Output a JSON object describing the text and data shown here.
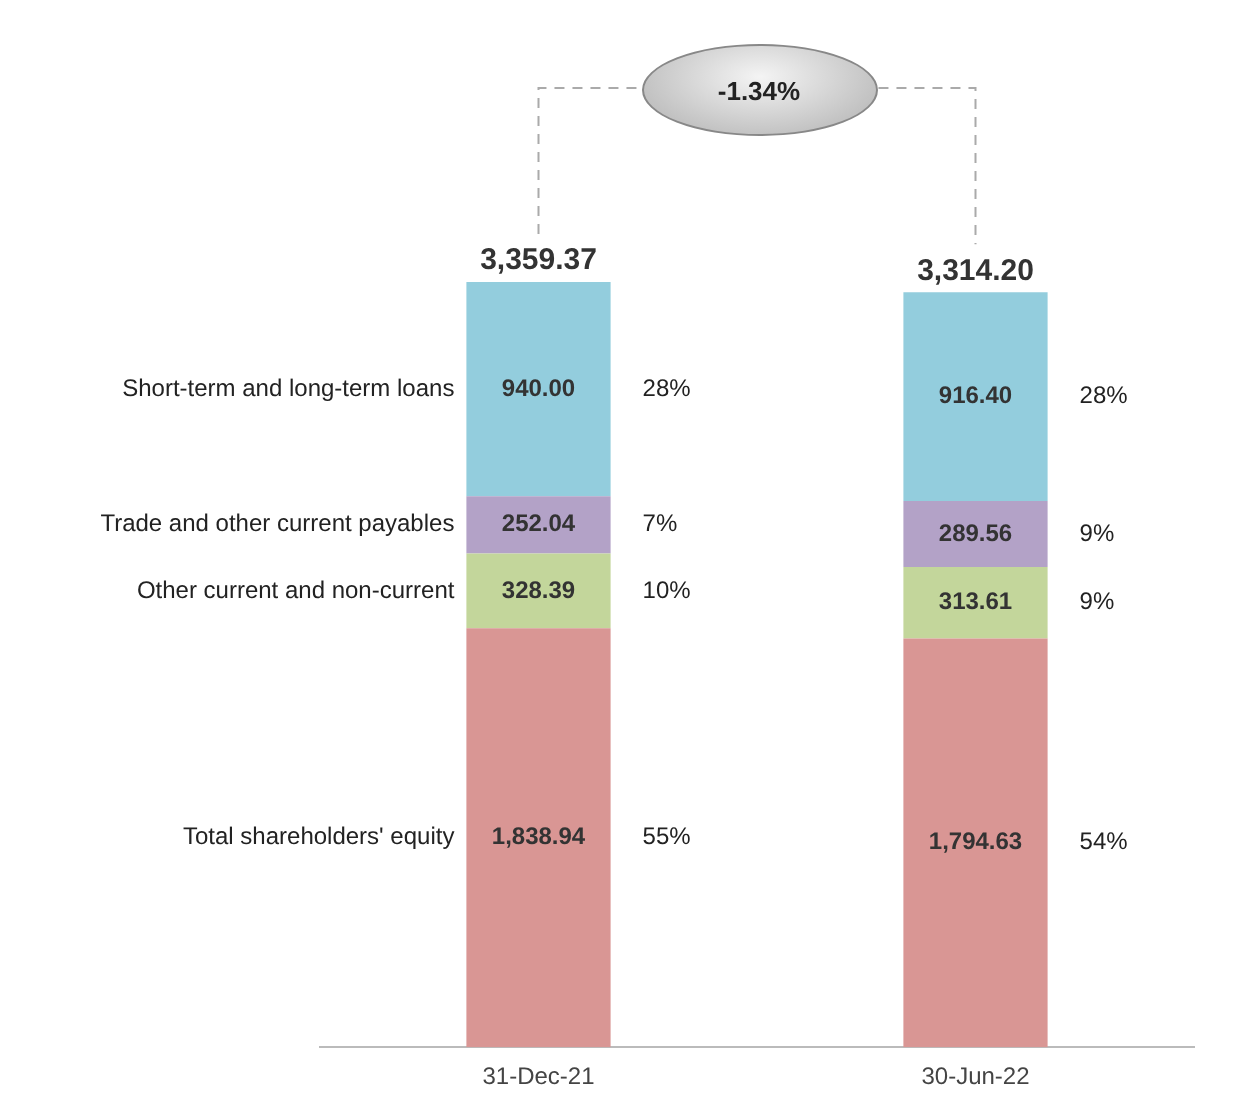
{
  "chart_data": {
    "type": "bar",
    "stacked": true,
    "categories": [
      "31-Dec-21",
      "30-Jun-22"
    ],
    "series": [
      {
        "name": "Total shareholders' equity",
        "color": "#d99694",
        "values": [
          1838.94,
          1794.63
        ],
        "value_labels": [
          "1,838.94",
          "1,794.63"
        ]
      },
      {
        "name": "Other current and non-current",
        "color": "#c3d69b",
        "values": [
          328.39,
          313.61
        ],
        "value_labels": [
          "328.39",
          "313.61"
        ]
      },
      {
        "name": "Trade and other current payables",
        "color": "#b3a2c7",
        "values": [
          252.04,
          289.56
        ],
        "value_labels": [
          "252.04",
          "289.56"
        ]
      },
      {
        "name": "Short-term and long-term loans",
        "color": "#93cddd",
        "values": [
          940.0,
          916.4
        ],
        "value_labels": [
          "940.00",
          "916.40"
        ]
      }
    ],
    "totals": [
      "3,359.37",
      "3,314.20"
    ],
    "annotations": [
      "55%",
      "10%",
      "7%",
      "28%",
      "54%",
      "9%",
      "9%",
      "28%",
      "-1.34%"
    ],
    "legend": false,
    "grid": false
  }
}
